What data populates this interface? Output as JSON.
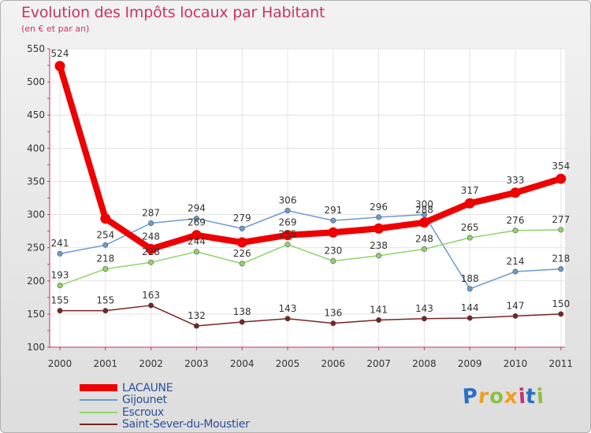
{
  "chart_data": {
    "type": "line",
    "title": "Evolution des Impôts locaux par Habitant",
    "subtitle": "(en € et par an)",
    "xlabel": "",
    "ylabel": "",
    "ylim": [
      100,
      550
    ],
    "yticks": [
      100,
      150,
      200,
      250,
      300,
      350,
      400,
      450,
      500,
      550
    ],
    "grid": true,
    "categories": [
      "2000",
      "2001",
      "2002",
      "2003",
      "2004",
      "2005",
      "2006",
      "2007",
      "2008",
      "2009",
      "2010",
      "2011"
    ],
    "series": [
      {
        "name": "LACAUNE",
        "color": "#ee0000",
        "values": [
          524,
          294,
          248,
          269,
          258,
          269,
          273,
          279,
          288,
          317,
          333,
          354
        ],
        "emphasis": true
      },
      {
        "name": "Gijounet",
        "color": "#6b9bd2",
        "values": [
          241,
          254,
          287,
          294,
          279,
          306,
          291,
          296,
          300,
          188,
          214,
          218
        ]
      },
      {
        "name": "Escroux",
        "color": "#8fd46a",
        "values": [
          193,
          218,
          228,
          244,
          226,
          255,
          230,
          238,
          248,
          265,
          276,
          277
        ]
      },
      {
        "name": "Saint-Sever-du-Moustier",
        "color": "#7a2222",
        "values": [
          155,
          155,
          163,
          132,
          138,
          143,
          136,
          141,
          143,
          144,
          147,
          150
        ]
      }
    ],
    "data_labels": {
      "LACAUNE": [
        "524",
        "",
        "248",
        "269",
        "",
        "269",
        "",
        "",
        "288",
        "317",
        "333",
        "354"
      ],
      "Gijounet": [
        "241",
        "254",
        "287",
        "294",
        "279",
        "306",
        "291",
        "296",
        "300",
        "188",
        "214",
        "218"
      ],
      "Escroux": [
        "193",
        "218",
        "228",
        "244",
        "226",
        "255",
        "230",
        "238",
        "248",
        "265",
        "276",
        "277"
      ],
      "Saint-Sever-du-Moustier": [
        "155",
        "155",
        "163",
        "132",
        "138",
        "143",
        "136",
        "141",
        "143",
        "144",
        "147",
        "150"
      ]
    }
  },
  "brand": {
    "text": "Proxiti",
    "colors": [
      "#2a6fc7",
      "#f0a020",
      "#8cbf3f",
      "#f0a020",
      "#c8336a",
      "#2a6fc7",
      "#8cbf3f"
    ]
  }
}
